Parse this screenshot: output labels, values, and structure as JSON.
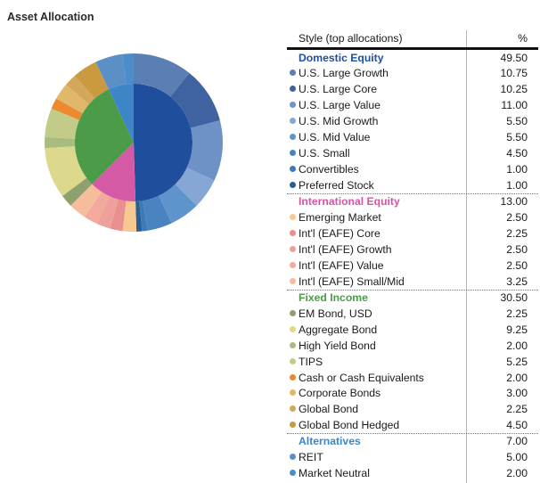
{
  "title": "Asset Allocation",
  "table": {
    "style_header": "Style (top allocations)",
    "pct_header": "%"
  },
  "chart_data": {
    "type": "pie",
    "variant": "two-ring sunburst",
    "groups": [
      {
        "name": "Domestic Equity",
        "value": 49.5,
        "color": "#1f4e9c",
        "label_color": "#1f4e9c",
        "items": [
          {
            "label": "U.S. Large Growth",
            "value": 10.75,
            "color": "#5b7fb4"
          },
          {
            "label": "U.S. Large Core",
            "value": 10.25,
            "color": "#3f63a0"
          },
          {
            "label": "U.S. Large Value",
            "value": 11.0,
            "color": "#6e91c6"
          },
          {
            "label": "U.S. Mid Growth",
            "value": 5.5,
            "color": "#86a6d6"
          },
          {
            "label": "U.S. Mid Value",
            "value": 5.5,
            "color": "#5f93cc"
          },
          {
            "label": "U.S. Small",
            "value": 4.5,
            "color": "#4a84c0"
          },
          {
            "label": "Convertibles",
            "value": 1.0,
            "color": "#3f7ab5"
          },
          {
            "label": "Preferred Stock",
            "value": 1.0,
            "color": "#255f95"
          }
        ]
      },
      {
        "name": "International Equity",
        "value": 13.0,
        "color": "#d55aa6",
        "label_color": "#d455a4",
        "items": [
          {
            "label": "Emerging Market",
            "value": 2.5,
            "color": "#f8c891"
          },
          {
            "label": "Int'l (EAFE) Core",
            "value": 2.25,
            "color": "#e8908f"
          },
          {
            "label": "Int'l (EAFE) Growth",
            "value": 2.5,
            "color": "#eea09a"
          },
          {
            "label": "Int'l (EAFE) Value",
            "value": 2.5,
            "color": "#f2aa9c"
          },
          {
            "label": "Int'l (EAFE) Small/Mid",
            "value": 3.25,
            "color": "#f6bd9c"
          }
        ]
      },
      {
        "name": "Fixed Income",
        "value": 30.5,
        "color": "#4c9b48",
        "label_color": "#4c9b48",
        "items": [
          {
            "label": "EM Bond, USD",
            "value": 2.25,
            "color": "#8ea06e"
          },
          {
            "label": "Aggregate Bond",
            "value": 9.25,
            "color": "#dcd88c"
          },
          {
            "label": "High Yield Bond",
            "value": 2.0,
            "color": "#a8bc7f"
          },
          {
            "label": "TIPS",
            "value": 5.25,
            "color": "#c2cc88"
          },
          {
            "label": "Cash or Cash Equivalents",
            "value": 2.0,
            "color": "#ee8a2e"
          },
          {
            "label": "Corporate Bonds",
            "value": 3.0,
            "color": "#dfb86a"
          },
          {
            "label": "Global Bond",
            "value": 2.25,
            "color": "#d4a85a"
          },
          {
            "label": "Global Bond Hedged",
            "value": 4.5,
            "color": "#c99a40"
          }
        ]
      },
      {
        "name": "Alternatives",
        "value": 7.0,
        "color": "#3c86c7",
        "label_color": "#3c86c7",
        "items": [
          {
            "label": "REIT",
            "value": 5.0,
            "color": "#5a90c6"
          },
          {
            "label": "Market Neutral",
            "value": 2.0,
            "color": "#4b8dcb"
          }
        ]
      }
    ]
  }
}
